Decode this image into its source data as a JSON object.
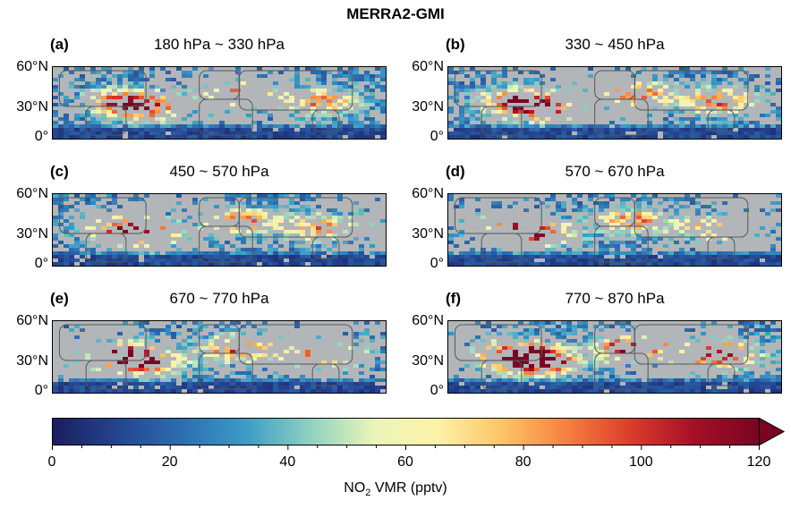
{
  "title": "MERRA2-GMI",
  "latitude_ticks": [
    "60°N",
    "30°N",
    "0°"
  ],
  "panels": [
    {
      "letter": "(a)",
      "label": "180 hPa ~ 330 hPa",
      "intensity": 0.55
    },
    {
      "letter": "(b)",
      "label": "330 ~ 450 hPa",
      "intensity": 0.6
    },
    {
      "letter": "(c)",
      "label": "450 ~ 570 hPa",
      "intensity": 0.55
    },
    {
      "letter": "(d)",
      "label": "570 ~ 670 hPa",
      "intensity": 0.5
    },
    {
      "letter": "(e)",
      "label": "670 ~ 770 hPa",
      "intensity": 0.65
    },
    {
      "letter": "(f)",
      "label": "770 ~ 870 hPa",
      "intensity": 0.85
    }
  ],
  "colorbar": {
    "ticks": [
      "0",
      "20",
      "40",
      "60",
      "80",
      "100",
      "120"
    ],
    "min": 0,
    "max": 120,
    "label_main": "NO",
    "label_sub": "2",
    "label_rest": " VMR (pptv)",
    "colors": [
      "#1b1d5e",
      "#24448e",
      "#2d6db0",
      "#3a9cc6",
      "#8fd0c2",
      "#e9f5b8",
      "#fdf1a8",
      "#fdc466",
      "#f6803f",
      "#dc3c2c",
      "#a50f26",
      "#7a0424"
    ]
  }
}
